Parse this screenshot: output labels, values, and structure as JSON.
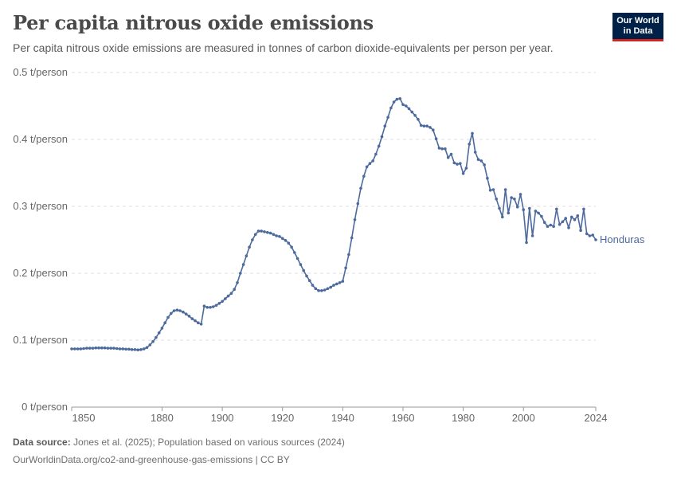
{
  "header": {
    "title": "Per capita nitrous oxide emissions",
    "subtitle": "Per capita nitrous oxide emissions are measured in tonnes of carbon dioxide-equivalents per person per year."
  },
  "logo": {
    "line1": "Our World",
    "line2": "in Data"
  },
  "footer": {
    "source_label": "Data source:",
    "source_text": " Jones et al. (2025); Population based on various sources (2024)",
    "url": "OurWorldinData.org/co2-and-greenhouse-gas-emissions | CC BY"
  },
  "colors": {
    "series": "#4c6a9c",
    "grid": "#dddddd",
    "logo_bg": "#002147",
    "logo_accent": "#ce261e"
  },
  "chart_data": {
    "type": "line",
    "x_ticks": [
      1850,
      1880,
      1900,
      1920,
      1940,
      1960,
      1980,
      2000,
      2024
    ],
    "y_ticks": [
      0,
      0.1,
      0.2,
      0.3,
      0.4,
      0.5
    ],
    "y_tick_labels": [
      "0 t/person",
      "0.1 t/person",
      "0.2 t/person",
      "0.3 t/person",
      "0.4 t/person",
      "0.5 t/person"
    ],
    "xlim": [
      1850,
      2024
    ],
    "ylim": [
      0,
      0.5
    ],
    "grid": "horizontal dashed",
    "series": [
      {
        "name": "Honduras",
        "x": [
          1850,
          1851,
          1852,
          1853,
          1854,
          1855,
          1856,
          1857,
          1858,
          1859,
          1860,
          1861,
          1862,
          1863,
          1864,
          1865,
          1866,
          1867,
          1868,
          1869,
          1870,
          1871,
          1872,
          1873,
          1874,
          1875,
          1876,
          1877,
          1878,
          1879,
          1880,
          1881,
          1882,
          1883,
          1884,
          1885,
          1886,
          1887,
          1888,
          1889,
          1890,
          1891,
          1892,
          1893,
          1894,
          1895,
          1896,
          1897,
          1898,
          1899,
          1900,
          1901,
          1902,
          1903,
          1904,
          1905,
          1906,
          1907,
          1908,
          1909,
          1910,
          1911,
          1912,
          1913,
          1914,
          1915,
          1916,
          1917,
          1918,
          1919,
          1920,
          1921,
          1922,
          1923,
          1924,
          1925,
          1926,
          1927,
          1928,
          1929,
          1930,
          1931,
          1932,
          1933,
          1934,
          1935,
          1936,
          1937,
          1938,
          1939,
          1940,
          1941,
          1942,
          1943,
          1944,
          1945,
          1946,
          1947,
          1948,
          1949,
          1950,
          1951,
          1952,
          1953,
          1954,
          1955,
          1956,
          1957,
          1958,
          1959,
          1960,
          1961,
          1962,
          1963,
          1964,
          1965,
          1966,
          1967,
          1968,
          1969,
          1970,
          1971,
          1972,
          1973,
          1974,
          1975,
          1976,
          1977,
          1978,
          1979,
          1980,
          1981,
          1982,
          1983,
          1984,
          1985,
          1986,
          1987,
          1988,
          1989,
          1990,
          1991,
          1992,
          1993,
          1994,
          1995,
          1996,
          1997,
          1998,
          1999,
          2000,
          2001,
          2002,
          2003,
          2004,
          2005,
          2006,
          2007,
          2008,
          2009,
          2010,
          2011,
          2012,
          2013,
          2014,
          2015,
          2016,
          2017,
          2018,
          2019,
          2020,
          2021,
          2022,
          2023,
          2024
        ],
        "y": [
          0.087,
          0.087,
          0.087,
          0.087,
          0.0875,
          0.088,
          0.088,
          0.088,
          0.0885,
          0.0885,
          0.0885,
          0.0885,
          0.088,
          0.088,
          0.088,
          0.0875,
          0.087,
          0.087,
          0.0865,
          0.0865,
          0.086,
          0.086,
          0.0855,
          0.086,
          0.087,
          0.089,
          0.093,
          0.098,
          0.104,
          0.111,
          0.118,
          0.126,
          0.134,
          0.14,
          0.144,
          0.145,
          0.144,
          0.142,
          0.139,
          0.136,
          0.132,
          0.129,
          0.126,
          0.124,
          0.151,
          0.149,
          0.149,
          0.15,
          0.152,
          0.155,
          0.158,
          0.162,
          0.166,
          0.17,
          0.176,
          0.186,
          0.2,
          0.213,
          0.226,
          0.239,
          0.25,
          0.258,
          0.263,
          0.263,
          0.262,
          0.261,
          0.26,
          0.258,
          0.256,
          0.255,
          0.252,
          0.249,
          0.245,
          0.239,
          0.231,
          0.222,
          0.213,
          0.204,
          0.196,
          0.189,
          0.182,
          0.177,
          0.174,
          0.174,
          0.175,
          0.177,
          0.179,
          0.182,
          0.184,
          0.186,
          0.188,
          0.208,
          0.228,
          0.253,
          0.28,
          0.304,
          0.327,
          0.345,
          0.359,
          0.364,
          0.368,
          0.378,
          0.39,
          0.404,
          0.42,
          0.433,
          0.447,
          0.456,
          0.46,
          0.461,
          0.452,
          0.45,
          0.446,
          0.441,
          0.436,
          0.43,
          0.421,
          0.42,
          0.42,
          0.418,
          0.414,
          0.401,
          0.387,
          0.386,
          0.386,
          0.373,
          0.378,
          0.365,
          0.363,
          0.364,
          0.349,
          0.357,
          0.393,
          0.409,
          0.381,
          0.37,
          0.368,
          0.362,
          0.342,
          0.324,
          0.325,
          0.311,
          0.297,
          0.284,
          0.325,
          0.29,
          0.313,
          0.311,
          0.299,
          0.318,
          0.295,
          0.246,
          0.297,
          0.256,
          0.293,
          0.29,
          0.285,
          0.276,
          0.27,
          0.272,
          0.27,
          0.296,
          0.273,
          0.277,
          0.282,
          0.268,
          0.284,
          0.28,
          0.286,
          0.264,
          0.296,
          0.259,
          0.256,
          0.257,
          0.25
        ]
      }
    ]
  }
}
